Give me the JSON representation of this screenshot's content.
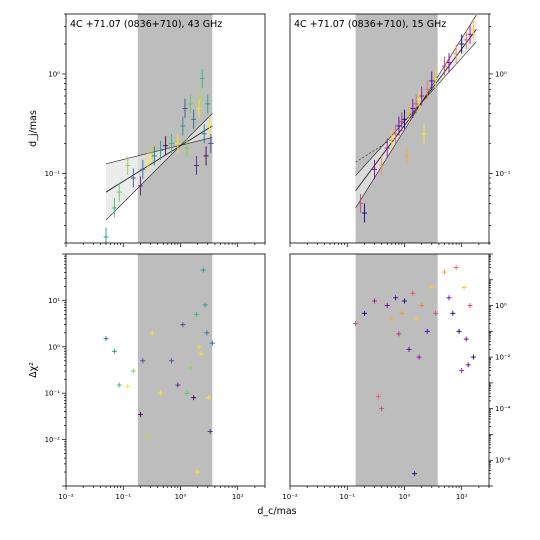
{
  "chart_data": [
    {
      "type": "scatter",
      "panel": "top-left",
      "title": "4C +71.07 (0836+710), 43 GHz",
      "ylabel": "d_j/mas",
      "xscale": "log",
      "yscale": "log",
      "xlim": [
        0.01,
        30
      ],
      "ylim": [
        0.02,
        4
      ],
      "y_ticks": [
        {
          "v": 0.1,
          "label": "10⁻¹"
        },
        {
          "v": 1,
          "label": "10⁰"
        }
      ],
      "shaded_x_range": [
        0.18,
        3.6
      ],
      "fit_lines": [
        {
          "name": "central",
          "x": [
            0.05,
            3.6
          ],
          "y": [
            0.065,
            0.3
          ]
        },
        {
          "name": "upper",
          "x": [
            0.05,
            3.6
          ],
          "y": [
            0.125,
            0.23
          ]
        },
        {
          "name": "lower",
          "x": [
            0.05,
            3.6
          ],
          "y": [
            0.034,
            0.4
          ]
        }
      ],
      "points": [
        {
          "x": 0.05,
          "y": 0.023,
          "c": "#21918c"
        },
        {
          "x": 0.07,
          "y": 0.045,
          "c": "#35b779"
        },
        {
          "x": 0.085,
          "y": 0.065,
          "c": "#5ec962"
        },
        {
          "x": 0.12,
          "y": 0.12,
          "c": "#7ad151"
        },
        {
          "x": 0.15,
          "y": 0.09,
          "c": "#3b528b"
        },
        {
          "x": 0.2,
          "y": 0.075,
          "c": "#482878"
        },
        {
          "x": 0.22,
          "y": 0.11,
          "c": "#31688e"
        },
        {
          "x": 0.27,
          "y": 0.13,
          "c": "#fde725"
        },
        {
          "x": 0.32,
          "y": 0.16,
          "c": "#b5de2b"
        },
        {
          "x": 0.35,
          "y": 0.15,
          "c": "#2a788e"
        },
        {
          "x": 0.45,
          "y": 0.17,
          "c": "#1f9e89"
        },
        {
          "x": 0.55,
          "y": 0.19,
          "c": "#440154"
        },
        {
          "x": 0.7,
          "y": 0.2,
          "c": "#35b779"
        },
        {
          "x": 0.9,
          "y": 0.2,
          "c": "#fde725"
        },
        {
          "x": 1.1,
          "y": 0.3,
          "c": "#21918c"
        },
        {
          "x": 1.2,
          "y": 0.45,
          "c": "#3b528b"
        },
        {
          "x": 1.3,
          "y": 0.18,
          "c": "#7ad151"
        },
        {
          "x": 1.5,
          "y": 0.5,
          "c": "#5ec962"
        },
        {
          "x": 1.7,
          "y": 0.35,
          "c": "#31688e"
        },
        {
          "x": 1.9,
          "y": 0.12,
          "c": "#482878"
        },
        {
          "x": 2.1,
          "y": 0.45,
          "c": "#fde725"
        },
        {
          "x": 2.2,
          "y": 0.55,
          "c": "#b5de2b"
        },
        {
          "x": 2.4,
          "y": 0.9,
          "c": "#35b779"
        },
        {
          "x": 2.6,
          "y": 0.25,
          "c": "#2a788e"
        },
        {
          "x": 2.8,
          "y": 0.15,
          "c": "#440154"
        },
        {
          "x": 3.0,
          "y": 0.5,
          "c": "#1f9e89"
        },
        {
          "x": 3.2,
          "y": 0.3,
          "c": "#fde725"
        },
        {
          "x": 3.4,
          "y": 0.2,
          "c": "#3b528b"
        }
      ]
    },
    {
      "type": "scatter",
      "panel": "top-right",
      "title": "4C +71.07 (0836+710), 15 GHz",
      "xscale": "log",
      "yscale": "log",
      "xlim": [
        0.01,
        30
      ],
      "ylim": [
        0.02,
        4
      ],
      "y_ticks": [
        {
          "v": 0.1,
          "label": "10⁻¹"
        },
        {
          "v": 1,
          "label": "10⁰"
        }
      ],
      "shaded_x_range": [
        0.14,
        3.8
      ],
      "fit_lines": [
        {
          "name": "central",
          "x": [
            0.14,
            18
          ],
          "y": [
            0.067,
            2.8
          ]
        },
        {
          "name": "upper",
          "x": [
            0.14,
            18
          ],
          "y": [
            0.095,
            2.1
          ]
        },
        {
          "name": "lower",
          "x": [
            0.14,
            18
          ],
          "y": [
            0.045,
            3.9
          ]
        },
        {
          "name": "extrapolation",
          "x": [
            0.14,
            0.6
          ],
          "y": [
            0.13,
            0.22
          ]
        }
      ],
      "points": [
        {
          "x": 0.17,
          "y": 0.05,
          "c": "#cc4778"
        },
        {
          "x": 0.2,
          "y": 0.04,
          "c": "#0d0887"
        },
        {
          "x": 0.3,
          "y": 0.11,
          "c": "#7e03a8"
        },
        {
          "x": 0.4,
          "y": 0.12,
          "c": "#f89540"
        },
        {
          "x": 0.5,
          "y": 0.18,
          "c": "#9c179e"
        },
        {
          "x": 0.6,
          "y": 0.22,
          "c": "#fdca26"
        },
        {
          "x": 0.7,
          "y": 0.25,
          "c": "#e16462"
        },
        {
          "x": 0.8,
          "y": 0.3,
          "c": "#5302a3"
        },
        {
          "x": 0.9,
          "y": 0.33,
          "c": "#b12a90"
        },
        {
          "x": 1.0,
          "y": 0.35,
          "c": "#0d0887"
        },
        {
          "x": 1.2,
          "y": 0.4,
          "c": "#fca636"
        },
        {
          "x": 1.4,
          "y": 0.45,
          "c": "#6a00a8"
        },
        {
          "x": 1.6,
          "y": 0.5,
          "c": "#d8576b"
        },
        {
          "x": 1.8,
          "y": 0.55,
          "c": "#f0f921"
        },
        {
          "x": 2.0,
          "y": 0.6,
          "c": "#8f0da4"
        },
        {
          "x": 2.5,
          "y": 0.7,
          "c": "#ed7953"
        },
        {
          "x": 3.0,
          "y": 0.85,
          "c": "#46039f"
        },
        {
          "x": 3.5,
          "y": 0.9,
          "c": "#fdca26"
        },
        {
          "x": 5.0,
          "y": 1.2,
          "c": "#cc4778"
        },
        {
          "x": 6.0,
          "y": 1.3,
          "c": "#7e03a8"
        },
        {
          "x": 8.0,
          "y": 1.6,
          "c": "#f89540"
        },
        {
          "x": 10.0,
          "y": 2.0,
          "c": "#0d0887"
        },
        {
          "x": 12.0,
          "y": 2.2,
          "c": "#e16462"
        },
        {
          "x": 14.0,
          "y": 2.5,
          "c": "#9c179e"
        },
        {
          "x": 16.0,
          "y": 2.8,
          "c": "#fdca26"
        },
        {
          "x": 2.2,
          "y": 0.25,
          "c": "#f0f921"
        },
        {
          "x": 1.1,
          "y": 0.15,
          "c": "#fca636"
        }
      ]
    },
    {
      "type": "scatter",
      "panel": "bottom-left",
      "ylabel": "Δχ²",
      "xlabel": "d_c/mas",
      "xscale": "log",
      "yscale": "log",
      "xlim": [
        0.01,
        30
      ],
      "ylim": [
        0.001,
        100
      ],
      "x_ticks": [
        {
          "v": 0.01,
          "label": "10⁻²"
        },
        {
          "v": 0.1,
          "label": "10⁻¹"
        },
        {
          "v": 1,
          "label": "10⁰"
        },
        {
          "v": 10,
          "label": "10¹"
        }
      ],
      "y_ticks": [
        {
          "v": 0.01,
          "label": "10⁻²"
        },
        {
          "v": 0.1,
          "label": "10⁻¹"
        },
        {
          "v": 1,
          "label": "10⁰"
        },
        {
          "v": 10,
          "label": "10¹"
        }
      ],
      "shaded_x_range": [
        0.18,
        3.6
      ],
      "points": [
        {
          "x": 0.05,
          "y": 1.5,
          "c": "#31688e"
        },
        {
          "x": 0.07,
          "y": 0.8,
          "c": "#21918c"
        },
        {
          "x": 0.085,
          "y": 0.15,
          "c": "#35b779"
        },
        {
          "x": 0.12,
          "y": 0.14,
          "c": "#fde725"
        },
        {
          "x": 0.15,
          "y": 0.3,
          "c": "#7ad151"
        },
        {
          "x": 0.2,
          "y": 0.035,
          "c": "#440154"
        },
        {
          "x": 0.22,
          "y": 0.5,
          "c": "#3b528b"
        },
        {
          "x": 0.27,
          "y": 0.012,
          "c": "#b5de2b"
        },
        {
          "x": 0.32,
          "y": 2.0,
          "c": "#fde725"
        },
        {
          "x": 0.45,
          "y": 0.1,
          "c": "#fde725"
        },
        {
          "x": 0.7,
          "y": 0.5,
          "c": "#3b528b"
        },
        {
          "x": 0.9,
          "y": 0.15,
          "c": "#482878"
        },
        {
          "x": 1.1,
          "y": 3.0,
          "c": "#3b528b"
        },
        {
          "x": 1.3,
          "y": 0.1,
          "c": "#5ec962"
        },
        {
          "x": 1.5,
          "y": 0.35,
          "c": "#7ad151"
        },
        {
          "x": 1.7,
          "y": 0.08,
          "c": "#440154"
        },
        {
          "x": 1.9,
          "y": 5.0,
          "c": "#35b779"
        },
        {
          "x": 2.1,
          "y": 1.0,
          "c": "#fde725"
        },
        {
          "x": 2.3,
          "y": 0.7,
          "c": "#fde725"
        },
        {
          "x": 2.5,
          "y": 45.0,
          "c": "#21918c"
        },
        {
          "x": 2.7,
          "y": 8.0,
          "c": "#1f9e89"
        },
        {
          "x": 2.9,
          "y": 2.0,
          "c": "#2a788e"
        },
        {
          "x": 3.1,
          "y": 0.08,
          "c": "#fde725"
        },
        {
          "x": 3.3,
          "y": 0.015,
          "c": "#482878"
        },
        {
          "x": 3.6,
          "y": 1.2,
          "c": "#31688e"
        },
        {
          "x": 2.0,
          "y": 0.002,
          "c": "#fde725"
        }
      ]
    },
    {
      "type": "scatter",
      "panel": "bottom-right",
      "xscale": "log",
      "yscale": "log",
      "xlim": [
        0.01,
        30
      ],
      "ylim": [
        1e-07,
        100
      ],
      "x_ticks": [
        {
          "v": 0.01,
          "label": "10⁻²"
        },
        {
          "v": 0.1,
          "label": "10⁻¹"
        },
        {
          "v": 1,
          "label": "10⁰"
        },
        {
          "v": 10,
          "label": "10¹"
        }
      ],
      "y_ticks": [
        {
          "v": 1e-06,
          "label": "10⁻⁶"
        },
        {
          "v": 0.0001,
          "label": "10⁻⁴"
        },
        {
          "v": 0.01,
          "label": "10⁻²"
        },
        {
          "v": 1,
          "label": "10⁰"
        }
      ],
      "shaded_x_range": [
        0.14,
        3.8
      ],
      "points": [
        {
          "x": 0.14,
          "y": 0.2,
          "c": "#cc4778"
        },
        {
          "x": 0.2,
          "y": 0.5,
          "c": "#0d0887"
        },
        {
          "x": 0.3,
          "y": 1.5,
          "c": "#9c179e"
        },
        {
          "x": 0.35,
          "y": 0.0003,
          "c": "#e16462"
        },
        {
          "x": 0.4,
          "y": 0.0001,
          "c": "#cc4778"
        },
        {
          "x": 0.5,
          "y": 1.0,
          "c": "#7e03a8"
        },
        {
          "x": 0.6,
          "y": 0.3,
          "c": "#fca636"
        },
        {
          "x": 0.7,
          "y": 2.0,
          "c": "#5302a3"
        },
        {
          "x": 0.8,
          "y": 0.08,
          "c": "#b12a90"
        },
        {
          "x": 0.9,
          "y": 0.5,
          "c": "#f89540"
        },
        {
          "x": 1.0,
          "y": 1.5,
          "c": "#0d0887"
        },
        {
          "x": 1.2,
          "y": 0.02,
          "c": "#6a00a8"
        },
        {
          "x": 1.4,
          "y": 3.0,
          "c": "#d8576b"
        },
        {
          "x": 1.6,
          "y": 0.3,
          "c": "#fdca26"
        },
        {
          "x": 1.8,
          "y": 0.01,
          "c": "#8f0da4"
        },
        {
          "x": 2.0,
          "y": 1.0,
          "c": "#ed7953"
        },
        {
          "x": 2.5,
          "y": 0.1,
          "c": "#46039f"
        },
        {
          "x": 3.0,
          "y": 5.0,
          "c": "#fdca26"
        },
        {
          "x": 3.5,
          "y": 0.5,
          "c": "#cc4778"
        },
        {
          "x": 5.0,
          "y": 20.0,
          "c": "#f89540"
        },
        {
          "x": 6.0,
          "y": 2.0,
          "c": "#7e03a8"
        },
        {
          "x": 7.0,
          "y": 0.5,
          "c": "#0d0887"
        },
        {
          "x": 8.0,
          "y": 30.0,
          "c": "#e16462"
        },
        {
          "x": 9.0,
          "y": 0.1,
          "c": "#0d0887"
        },
        {
          "x": 10.0,
          "y": 0.003,
          "c": "#9c179e"
        },
        {
          "x": 11.0,
          "y": 5.0,
          "c": "#fdca26"
        },
        {
          "x": 12.0,
          "y": 0.05,
          "c": "#6a00a8"
        },
        {
          "x": 13.0,
          "y": 0.005,
          "c": "#5302a3"
        },
        {
          "x": 14.0,
          "y": 1.0,
          "c": "#cc4778"
        },
        {
          "x": 16.0,
          "y": 0.01,
          "c": "#0d0887"
        },
        {
          "x": 1.5,
          "y": 3e-07,
          "c": "#0d0887"
        }
      ]
    }
  ]
}
